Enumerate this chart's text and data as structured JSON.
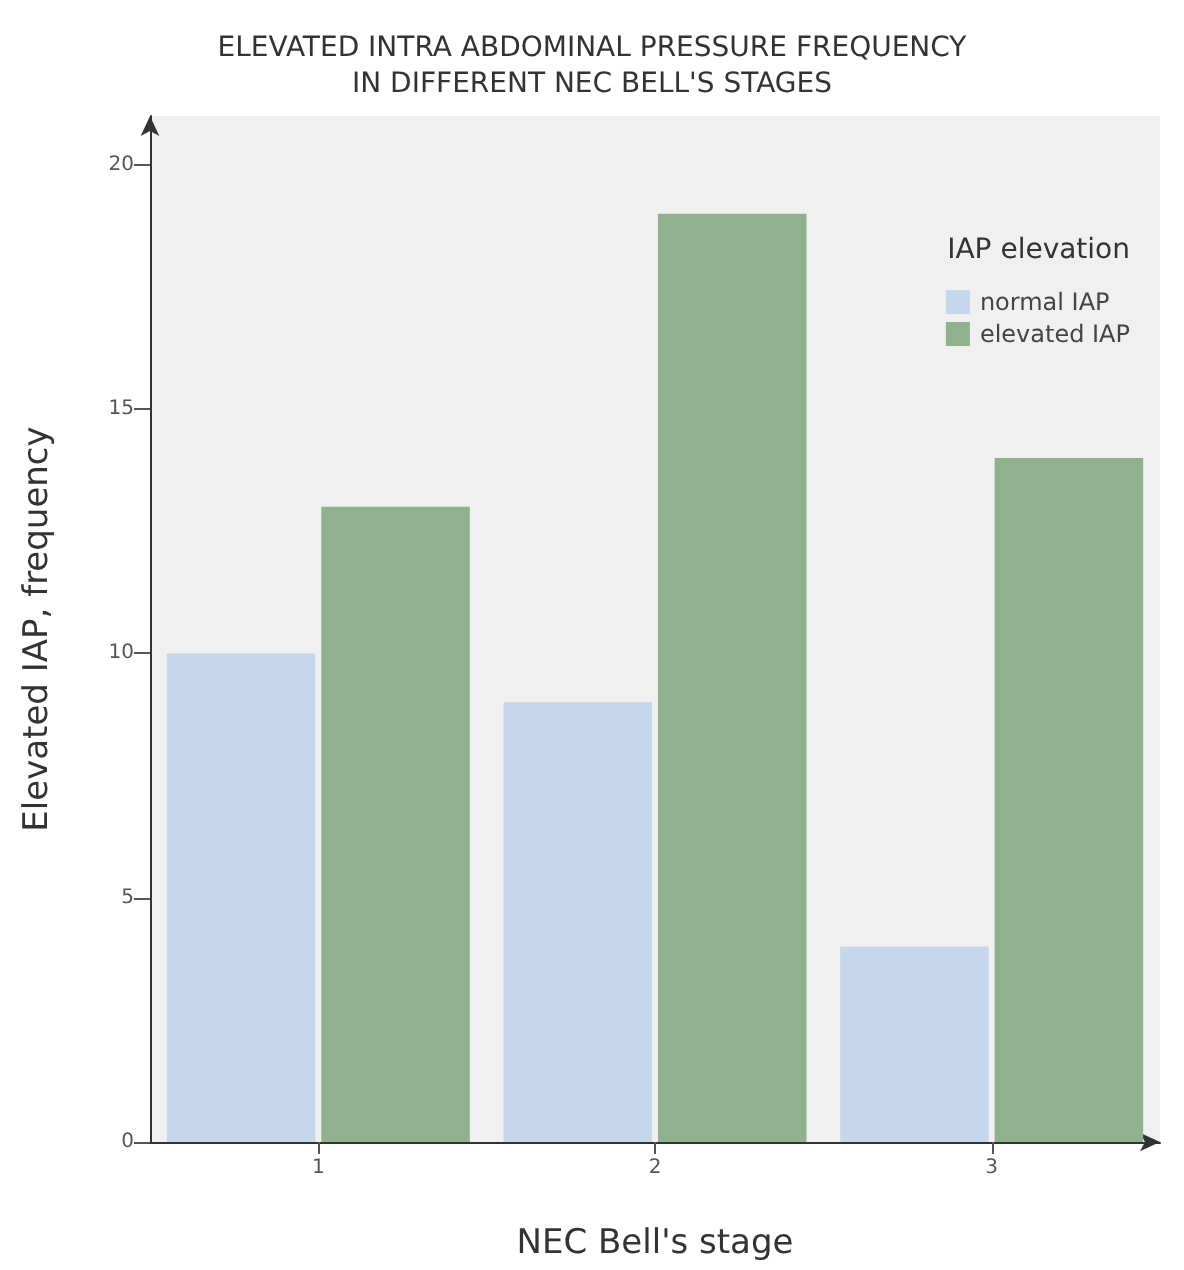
{
  "chart_data": {
    "type": "bar",
    "title": "ELEVATED INTRA ABDOMINAL PRESSURE FREQUENCY\nIN DIFFERENT NEC BELL'S STAGES",
    "xlabel": "NEC Bell's stage",
    "ylabel": "Elevated IAP, frequency",
    "legend_title": "IAP elevation",
    "categories": [
      "1",
      "2",
      "3"
    ],
    "series": [
      {
        "name": "normal IAP",
        "color": "#c6d7eb",
        "values": [
          10,
          9,
          4
        ]
      },
      {
        "name": "elevated IAP",
        "color": "#8fb18d",
        "values": [
          13,
          19,
          14
        ]
      }
    ],
    "ylim": [
      0,
      21
    ],
    "yticks": [
      0,
      5,
      10,
      15,
      20
    ],
    "grid": false,
    "legend": "top right"
  }
}
